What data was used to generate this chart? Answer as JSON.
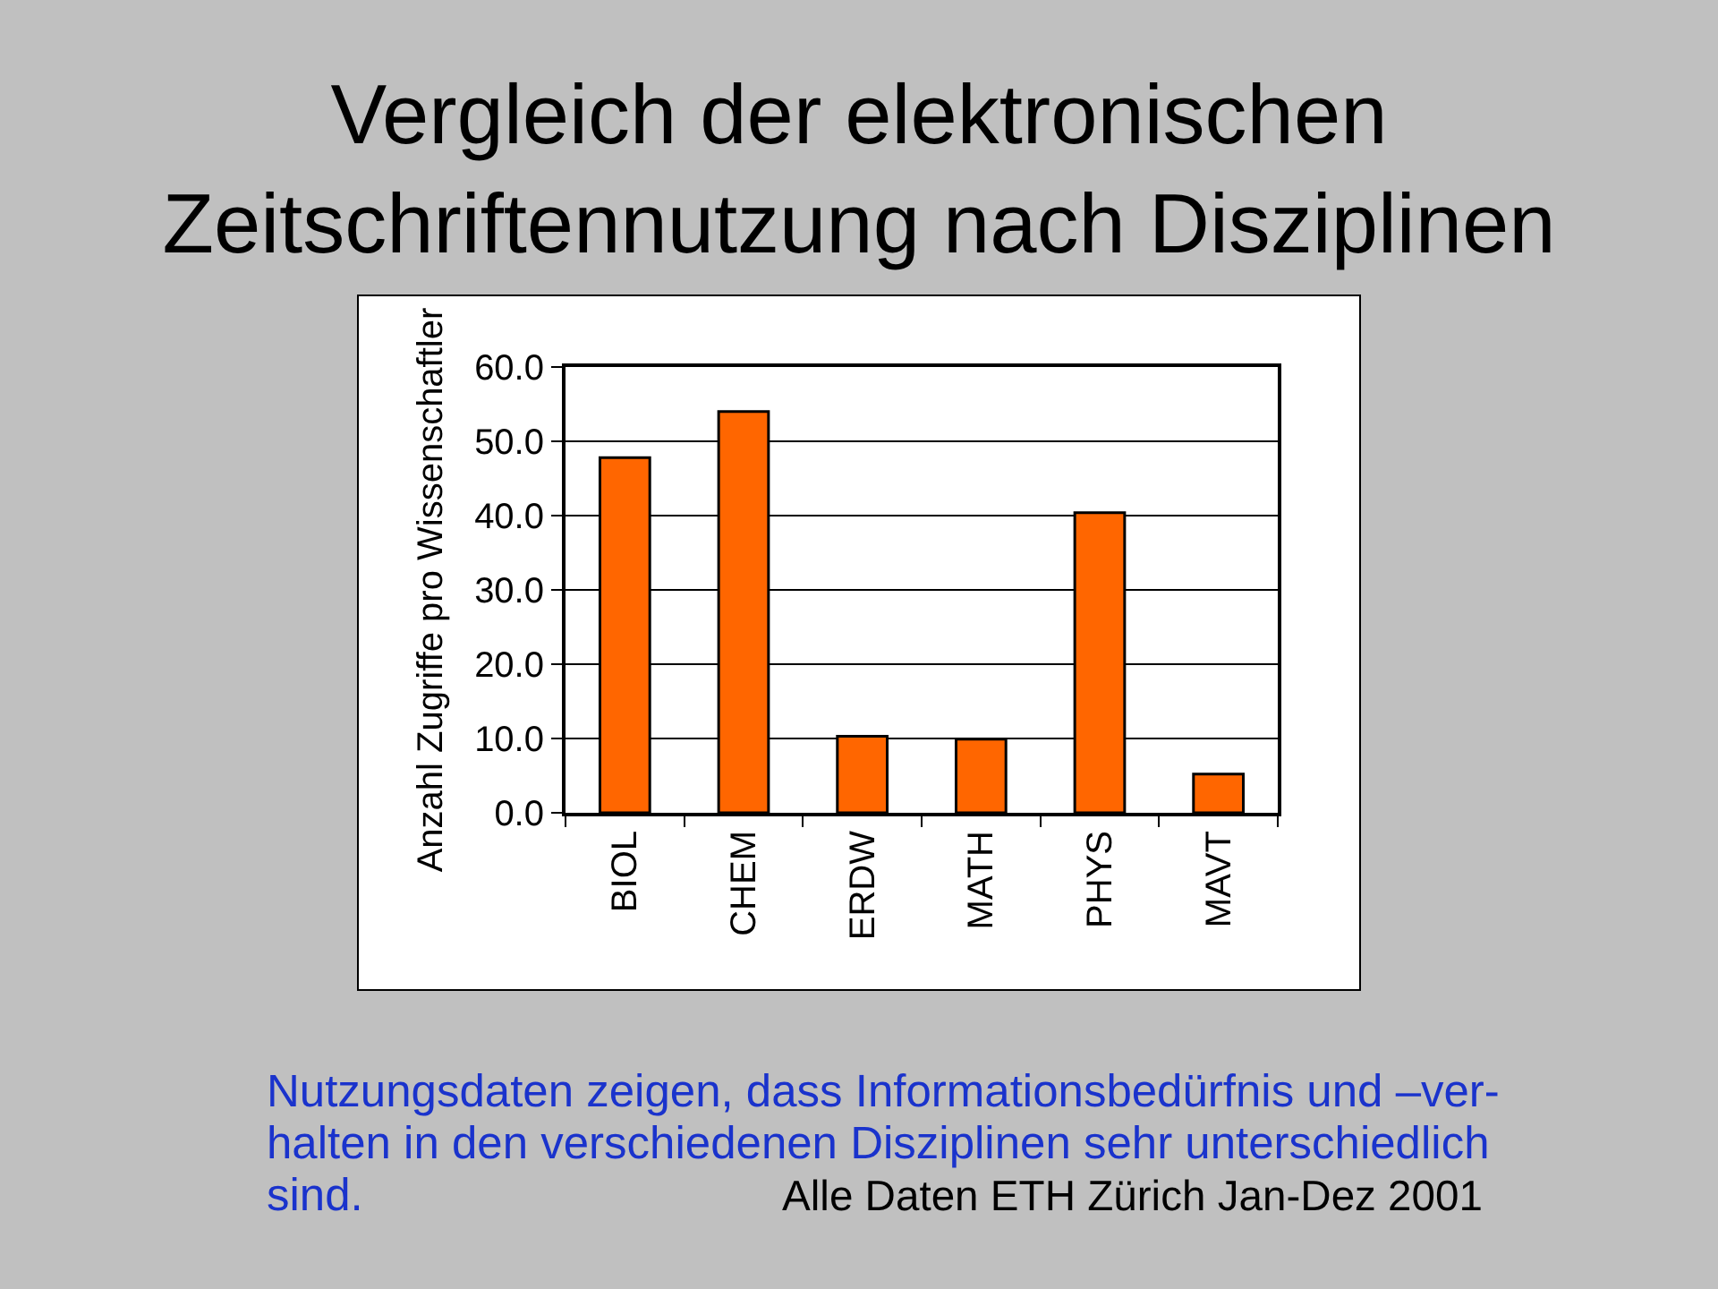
{
  "chart_data": {
    "type": "bar",
    "title": "Vergleich der elektronischen\nZeitschriftennutzung nach Disziplinen",
    "ylabel": "Anzahl Zugriffe pro Wissenschaftler",
    "categories": [
      "BIOL",
      "CHEM",
      "ERDW",
      "MATH",
      "PHYS",
      "MAVT"
    ],
    "values": [
      47.8,
      54.0,
      10.3,
      9.9,
      40.4,
      5.2
    ],
    "color": "#ff6600",
    "ylim": [
      0,
      60
    ],
    "yticks": [
      {
        "value": 0,
        "label": "0.0"
      },
      {
        "value": 10,
        "label": "10.0"
      },
      {
        "value": 20,
        "label": "20.0"
      },
      {
        "value": 30,
        "label": "30.0"
      },
      {
        "value": 40,
        "label": "40.0"
      },
      {
        "value": 50,
        "label": "50.0"
      },
      {
        "value": 60,
        "label": "60.0"
      }
    ],
    "grid": "y",
    "annotations": [
      "Nutzungsdaten zeigen, dass Informationsbedürfnis und –ver-",
      "halten in den verschiedenen Disziplinen sehr unterschiedlich",
      "sind.",
      "Alle Daten ETH Zürich Jan-Dez 2001"
    ]
  }
}
